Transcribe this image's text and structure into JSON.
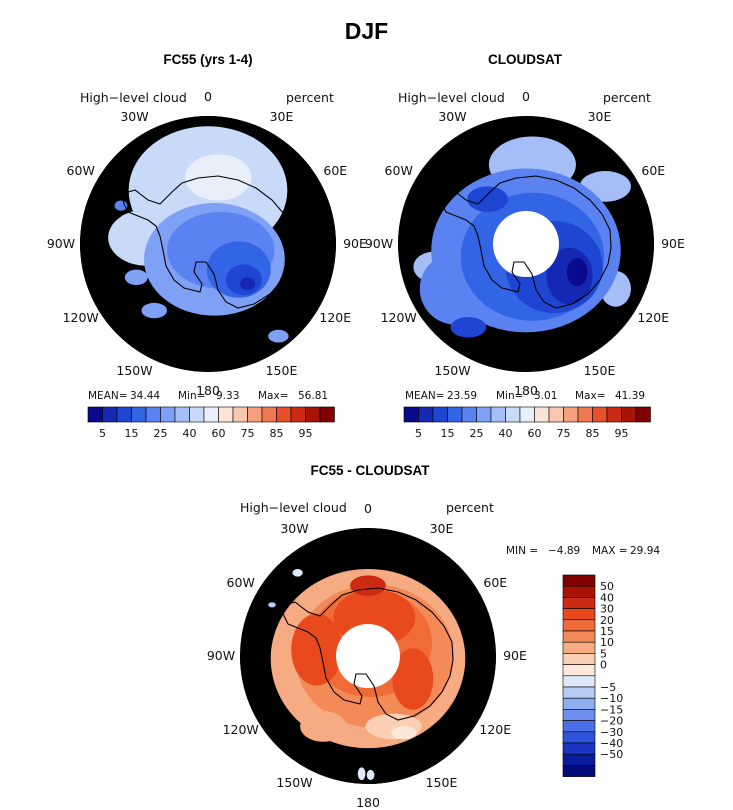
{
  "figure": {
    "title": "DJF"
  },
  "palettes": {
    "abs_colors": [
      "#0a0a8c",
      "#1428b4",
      "#1e46d2",
      "#3264e6",
      "#5a82f0",
      "#7ea0f5",
      "#a5bef8",
      "#c9daf9",
      "#e8effb",
      "#fbe3d6",
      "#f8c7ae",
      "#f5a07d",
      "#f07850",
      "#e6502a",
      "#cc2a14",
      "#a81408",
      "#820000"
    ],
    "abs_ticks": [
      "5",
      "15",
      "25",
      "40",
      "60",
      "75",
      "85",
      "95"
    ],
    "diff_colors": [
      "#820000",
      "#aa1405",
      "#cc2a12",
      "#e84a1e",
      "#f06b38",
      "#f48a58",
      "#f7ab82",
      "#fbd0b4",
      "#fde9da",
      "#dfe9fa",
      "#b7cbf5",
      "#8eacf0",
      "#6b8ef0",
      "#4a6fe6",
      "#2f52db",
      "#1a35c4",
      "#0a1c9e",
      "#000a78"
    ],
    "diff_ticks": [
      "50",
      "40",
      "30",
      "20",
      "15",
      "10",
      "5",
      "0",
      "−5",
      "−10",
      "−15",
      "−20",
      "−30",
      "−40",
      "−50"
    ]
  },
  "chart_data": [
    {
      "type": "heatmap",
      "projection": "south-polar-stereographic",
      "title": "FC55 (yrs 1-4)",
      "variable_label": "High−level cloud",
      "units_label": "percent",
      "lon_labels": [
        "0",
        "30E",
        "60E",
        "90E",
        "120E",
        "150E",
        "180",
        "150W",
        "120W",
        "90W",
        "60W",
        "30W"
      ],
      "stats": {
        "mean_label": "MEAN=",
        "mean": "34.44",
        "min_label": "Min=",
        "min": "9.33",
        "max_label": "Max=",
        "max": "56.81"
      },
      "colorbar_ticks": [
        "5",
        "15",
        "25",
        "40",
        "60",
        "75",
        "85",
        "95"
      ],
      "background_level": 6,
      "field": [
        {
          "type": "blob",
          "level": 7,
          "cx": 0.0,
          "cy": -0.42,
          "rx": 0.62,
          "ry": 0.5
        },
        {
          "type": "blob",
          "level": 7,
          "cx": -0.48,
          "cy": -0.05,
          "rx": 0.3,
          "ry": 0.22
        },
        {
          "type": "blob",
          "level": 8,
          "cx": 0.08,
          "cy": -0.52,
          "rx": 0.26,
          "ry": 0.18
        },
        {
          "type": "blob",
          "level": 5,
          "cx": 0.05,
          "cy": 0.12,
          "rx": 0.55,
          "ry": 0.44
        },
        {
          "type": "blob",
          "level": 4,
          "cx": 0.1,
          "cy": 0.05,
          "rx": 0.42,
          "ry": 0.3
        },
        {
          "type": "blob",
          "level": 3,
          "cx": 0.24,
          "cy": 0.2,
          "rx": 0.25,
          "ry": 0.22
        },
        {
          "type": "blob",
          "level": 2,
          "cx": 0.28,
          "cy": 0.28,
          "rx": 0.14,
          "ry": 0.12
        },
        {
          "type": "blob",
          "level": 1,
          "cx": 0.31,
          "cy": 0.31,
          "rx": 0.06,
          "ry": 0.05
        },
        {
          "type": "blob",
          "level": 5,
          "cx": -0.42,
          "cy": 0.52,
          "rx": 0.1,
          "ry": 0.06
        },
        {
          "type": "blob",
          "level": 5,
          "cx": -0.56,
          "cy": 0.26,
          "rx": 0.09,
          "ry": 0.06
        },
        {
          "type": "blob",
          "level": 4,
          "cx": -0.68,
          "cy": -0.3,
          "rx": 0.05,
          "ry": 0.04
        },
        {
          "type": "blob",
          "level": 5,
          "cx": 0.55,
          "cy": 0.72,
          "rx": 0.08,
          "ry": 0.05
        }
      ]
    },
    {
      "type": "heatmap",
      "projection": "south-polar-stereographic",
      "title": "CLOUDSAT",
      "variable_label": "High−level cloud",
      "units_label": "percent",
      "lon_labels": [
        "0",
        "30E",
        "60E",
        "90E",
        "120E",
        "150E",
        "180",
        "150W",
        "120W",
        "90W",
        "60W",
        "30W"
      ],
      "stats": {
        "mean_label": "MEAN=",
        "mean": "23.59",
        "min_label": "Min=",
        "min": "3.01",
        "max_label": "Max=",
        "max": "41.39"
      },
      "colorbar_ticks": [
        "5",
        "15",
        "25",
        "40",
        "60",
        "75",
        "85",
        "95"
      ],
      "background_level": 5,
      "pole_hole": true,
      "field": [
        {
          "type": "blob",
          "level": 6,
          "cx": 0.05,
          "cy": -0.62,
          "rx": 0.34,
          "ry": 0.22
        },
        {
          "type": "blob",
          "level": 6,
          "cx": -0.72,
          "cy": 0.18,
          "rx": 0.16,
          "ry": 0.12
        },
        {
          "type": "blob",
          "level": 6,
          "cx": 0.62,
          "cy": -0.45,
          "rx": 0.2,
          "ry": 0.12
        },
        {
          "type": "blob",
          "level": 6,
          "cx": 0.7,
          "cy": 0.35,
          "rx": 0.12,
          "ry": 0.14
        },
        {
          "type": "blob",
          "level": 4,
          "cx": 0.0,
          "cy": 0.05,
          "rx": 0.74,
          "ry": 0.64
        },
        {
          "type": "blob",
          "level": 4,
          "cx": -0.55,
          "cy": 0.35,
          "rx": 0.28,
          "ry": 0.28
        },
        {
          "type": "blob",
          "level": 3,
          "cx": 0.05,
          "cy": 0.1,
          "rx": 0.56,
          "ry": 0.5
        },
        {
          "type": "blob",
          "level": 2,
          "cx": 0.22,
          "cy": 0.18,
          "rx": 0.38,
          "ry": 0.36
        },
        {
          "type": "blob",
          "level": 1,
          "cx": 0.34,
          "cy": 0.25,
          "rx": 0.18,
          "ry": 0.22
        },
        {
          "type": "blob",
          "level": 0,
          "cx": 0.4,
          "cy": 0.22,
          "rx": 0.08,
          "ry": 0.11
        },
        {
          "type": "blob",
          "level": 2,
          "cx": -0.3,
          "cy": -0.35,
          "rx": 0.16,
          "ry": 0.1
        },
        {
          "type": "blob",
          "level": 2,
          "cx": -0.45,
          "cy": 0.65,
          "rx": 0.14,
          "ry": 0.08
        }
      ]
    },
    {
      "type": "heatmap",
      "projection": "south-polar-stereographic",
      "title": "FC55 - CLOUDSAT",
      "variable_label": "High−level cloud",
      "units_label": "percent",
      "lon_labels": [
        "0",
        "30E",
        "60E",
        "90E",
        "120E",
        "150E",
        "180",
        "150W",
        "120W",
        "90W",
        "60W",
        "30W"
      ],
      "stats": {
        "min_label": "MIN =",
        "min": "−4.89",
        "max_label": "MAX =",
        "max": "29.94"
      },
      "colorbar_ticks": [
        "50",
        "40",
        "30",
        "20",
        "15",
        "10",
        "5",
        "0",
        "−5",
        "−10",
        "−15",
        "−20",
        "−30",
        "−40",
        "−50"
      ],
      "background_level": 7,
      "pole_hole": true,
      "field": [
        {
          "type": "blob",
          "level": 6,
          "cx": 0.0,
          "cy": 0.02,
          "rx": 0.76,
          "ry": 0.7
        },
        {
          "type": "blob",
          "level": 5,
          "cx": 0.05,
          "cy": 0.0,
          "rx": 0.62,
          "ry": 0.56
        },
        {
          "type": "blob",
          "level": 4,
          "cx": 0.02,
          "cy": -0.1,
          "rx": 0.48,
          "ry": 0.42
        },
        {
          "type": "blob",
          "level": 3,
          "cx": 0.05,
          "cy": -0.3,
          "rx": 0.32,
          "ry": 0.22
        },
        {
          "type": "blob",
          "level": 3,
          "cx": -0.4,
          "cy": -0.05,
          "rx": 0.2,
          "ry": 0.28
        },
        {
          "type": "blob",
          "level": 3,
          "cx": 0.35,
          "cy": 0.18,
          "rx": 0.16,
          "ry": 0.24
        },
        {
          "type": "blob",
          "level": 2,
          "cx": 0.0,
          "cy": -0.55,
          "rx": 0.14,
          "ry": 0.08
        },
        {
          "type": "blob",
          "level": 6,
          "cx": -0.35,
          "cy": 0.55,
          "rx": 0.18,
          "ry": 0.12
        },
        {
          "type": "blob",
          "level": 7,
          "cx": 0.2,
          "cy": 0.55,
          "rx": 0.22,
          "ry": 0.1
        },
        {
          "type": "blob",
          "level": 8,
          "cx": 0.28,
          "cy": 0.6,
          "rx": 0.1,
          "ry": 0.05
        },
        {
          "type": "blob",
          "level": 9,
          "cx": -0.55,
          "cy": -0.65,
          "rx": 0.04,
          "ry": 0.03
        },
        {
          "type": "blob",
          "level": 9,
          "cx": -0.05,
          "cy": 0.92,
          "rx": 0.03,
          "ry": 0.05
        },
        {
          "type": "blob",
          "level": 9,
          "cx": 0.02,
          "cy": 0.93,
          "rx": 0.03,
          "ry": 0.04
        },
        {
          "type": "blob",
          "level": 10,
          "cx": -0.75,
          "cy": -0.4,
          "rx": 0.03,
          "ry": 0.02
        }
      ]
    }
  ]
}
